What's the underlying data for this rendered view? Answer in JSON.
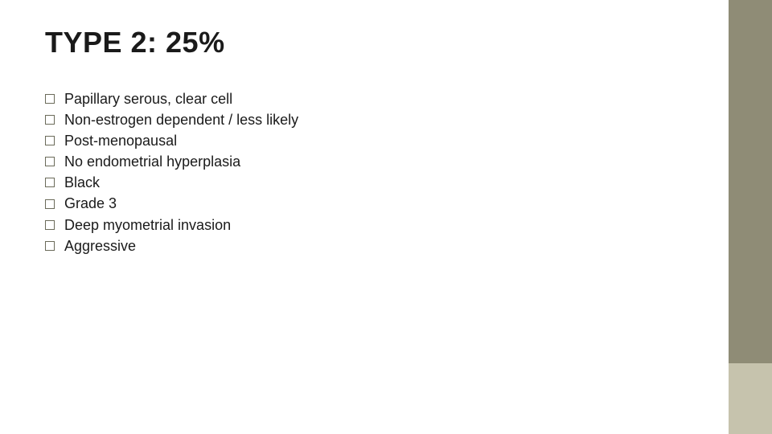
{
  "slide": {
    "title": "TYPE 2:  25%",
    "bullets": [
      "Papillary serous, clear cell",
      "Non-estrogen dependent / less likely",
      "Post-menopausal",
      "No endometrial hyperplasia",
      "Black",
      "Grade 3",
      "Deep myometrial invasion",
      "Aggressive"
    ]
  },
  "style": {
    "title_fontsize": 36,
    "title_fontweight": 700,
    "title_color": "#1a1a1a",
    "bullet_fontsize": 18,
    "bullet_color": "#1a1a1a",
    "bullet_box_border_color": "#6b6b5a",
    "background_color": "#ffffff",
    "accent_bar_top_color": "#8f8c76",
    "accent_bar_bottom_color": "#c6c3ad",
    "accent_bar_width": 54,
    "accent_bar_bottom_height": 88
  }
}
